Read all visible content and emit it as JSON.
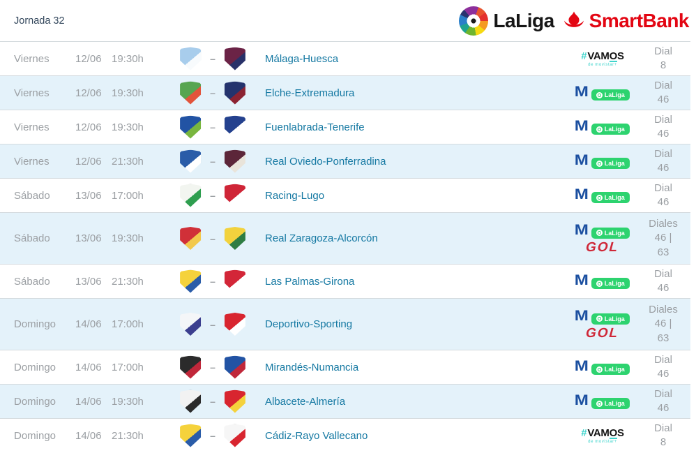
{
  "header": {
    "title": "Jornada 32",
    "laliga_text": "LaLiga",
    "smartbank_text": "SmartBank"
  },
  "table": {
    "versus_dash": "–"
  },
  "channel_logos": {
    "vamos": {
      "text": "#VAMOS",
      "subtext": "de movistar+"
    },
    "movistar_laliga": {
      "m": "M",
      "pill_label": "LaLiga"
    },
    "gol": {
      "text": "GOL"
    }
  },
  "colors": {
    "link_teal": "#1478a2",
    "row_alt_blue": "#e4f2fa",
    "gray_text": "#9b9fa3",
    "vamos_teal": "#3fd4cc",
    "movistar_blue": "#1b4fa0",
    "laliga_pill_green": "#2dd36f",
    "gol_red": "#cf2838",
    "santander_red": "#e30613"
  },
  "rows": [
    {
      "day": "Viernes",
      "date": "12/06",
      "time": "19:30h",
      "match": "Málaga-Huesca",
      "home_team": "Málaga",
      "away_team": "Huesca",
      "home_colors": [
        "#a8cdec",
        "#f8fbfd"
      ],
      "away_colors": [
        "#6b2346",
        "#283169"
      ],
      "channels": [
        "vamos"
      ],
      "dial": "Dial\n8"
    },
    {
      "day": "Viernes",
      "date": "12/06",
      "time": "19:30h",
      "match": "Elche-Extremadura",
      "home_team": "Elche",
      "away_team": "Extremadura",
      "home_colors": [
        "#57a551",
        "#e2543c"
      ],
      "away_colors": [
        "#24336d",
        "#8c2332"
      ],
      "channels": [
        "movistar_laliga"
      ],
      "dial": "Dial\n46"
    },
    {
      "day": "Viernes",
      "date": "12/06",
      "time": "19:30h",
      "match": "Fuenlabrada-Tenerife",
      "home_team": "Fuenlabrada",
      "away_team": "Tenerife",
      "home_colors": [
        "#2253a4",
        "#79b63f"
      ],
      "away_colors": [
        "#24418e",
        "#ffffff"
      ],
      "channels": [
        "movistar_laliga"
      ],
      "dial": "Dial\n46"
    },
    {
      "day": "Viernes",
      "date": "12/06",
      "time": "21:30h",
      "match": "Real Oviedo-Ponferradina",
      "home_team": "Real Oviedo",
      "away_team": "Ponferradina",
      "home_colors": [
        "#2a5ca8",
        "#ffffff"
      ],
      "away_colors": [
        "#5c2639",
        "#e9e4da"
      ],
      "channels": [
        "movistar_laliga"
      ],
      "dial": "Dial\n46"
    },
    {
      "day": "Sábado",
      "date": "13/06",
      "time": "17:00h",
      "match": "Racing-Lugo",
      "home_team": "Racing",
      "away_team": "Lugo",
      "home_colors": [
        "#f2f5f0",
        "#2e9e4f"
      ],
      "away_colors": [
        "#cf2537",
        "#ffffff"
      ],
      "channels": [
        "movistar_laliga"
      ],
      "dial": "Dial\n46"
    },
    {
      "day": "Sábado",
      "date": "13/06",
      "time": "19:30h",
      "match": "Real Zaragoza-Alcorcón",
      "home_team": "Real Zaragoza",
      "away_team": "Alcorcón",
      "home_colors": [
        "#d03038",
        "#f2c94c"
      ],
      "away_colors": [
        "#f2d23d",
        "#2e7d43"
      ],
      "channels": [
        "movistar_laliga",
        "gol"
      ],
      "dial": "Diales\n46 |\n63"
    },
    {
      "day": "Sábado",
      "date": "13/06",
      "time": "21:30h",
      "match": "Las Palmas-Girona",
      "home_team": "Las Palmas",
      "away_team": "Girona",
      "home_colors": [
        "#f5d23c",
        "#2a5ca8"
      ],
      "away_colors": [
        "#d32638",
        "#ffffff"
      ],
      "channels": [
        "movistar_laliga"
      ],
      "dial": "Dial\n46"
    },
    {
      "day": "Domingo",
      "date": "14/06",
      "time": "17:00h",
      "match": "Deportivo-Sporting",
      "home_team": "Deportivo",
      "away_team": "Sporting",
      "home_colors": [
        "#f4f6f8",
        "#3b3f8f"
      ],
      "away_colors": [
        "#d8252f",
        "#ffffff"
      ],
      "channels": [
        "movistar_laliga",
        "gol"
      ],
      "dial": "Diales\n46 |\n63"
    },
    {
      "day": "Domingo",
      "date": "14/06",
      "time": "17:00h",
      "match": "Mirandés-Numancia",
      "home_team": "Mirandés",
      "away_team": "Numancia",
      "home_colors": [
        "#2b2b2b",
        "#c0273a"
      ],
      "away_colors": [
        "#2253a4",
        "#c0273a"
      ],
      "channels": [
        "movistar_laliga"
      ],
      "dial": "Dial\n46"
    },
    {
      "day": "Domingo",
      "date": "14/06",
      "time": "19:30h",
      "match": "Albacete-Almería",
      "home_team": "Albacete",
      "away_team": "Almería",
      "home_colors": [
        "#f2f2f2",
        "#2b2b2b"
      ],
      "away_colors": [
        "#d8252f",
        "#f5d23c"
      ],
      "channels": [
        "movistar_laliga"
      ],
      "dial": "Dial\n46"
    },
    {
      "day": "Domingo",
      "date": "14/06",
      "time": "21:30h",
      "match": "Cádiz-Rayo Vallecano",
      "home_team": "Cádiz",
      "away_team": "Rayo Vallecano",
      "home_colors": [
        "#f5d23c",
        "#2a5ca8"
      ],
      "away_colors": [
        "#f6f6f6",
        "#d8252f"
      ],
      "channels": [
        "vamos"
      ],
      "dial": "Dial\n8"
    }
  ]
}
